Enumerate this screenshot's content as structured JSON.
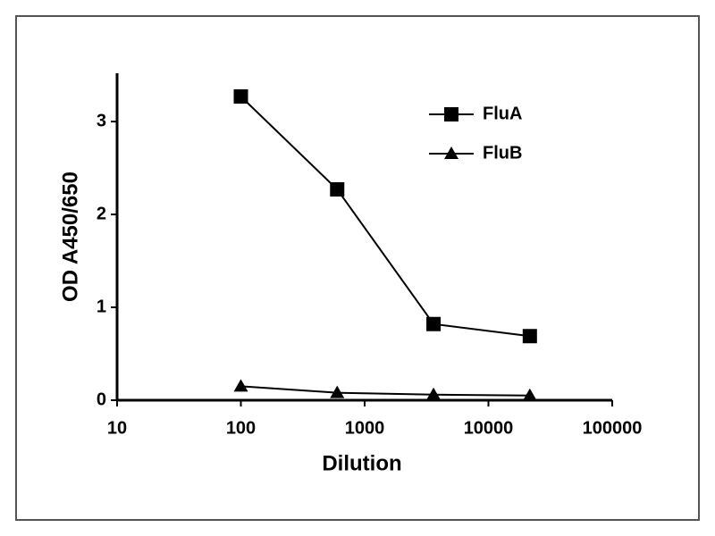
{
  "chart_data": {
    "type": "line",
    "xlabel": "Dilution",
    "ylabel": "OD A450/650",
    "x": [
      100,
      600,
      3600,
      21600
    ],
    "series": [
      {
        "name": "FluA",
        "color": "#000000",
        "marker": "square",
        "values": [
          3.27,
          2.27,
          0.82,
          0.69
        ]
      },
      {
        "name": "FluB",
        "color": "#000000",
        "marker": "triangle",
        "values": [
          0.15,
          0.08,
          0.06,
          0.05
        ]
      }
    ],
    "xscale": "log",
    "xlim": [
      10,
      100000
    ],
    "xticks": [
      10,
      100,
      1000,
      10000,
      100000
    ],
    "ylim": [
      0,
      3.52
    ],
    "yticks": [
      0,
      1,
      2,
      3
    ],
    "legend": "upper right"
  }
}
